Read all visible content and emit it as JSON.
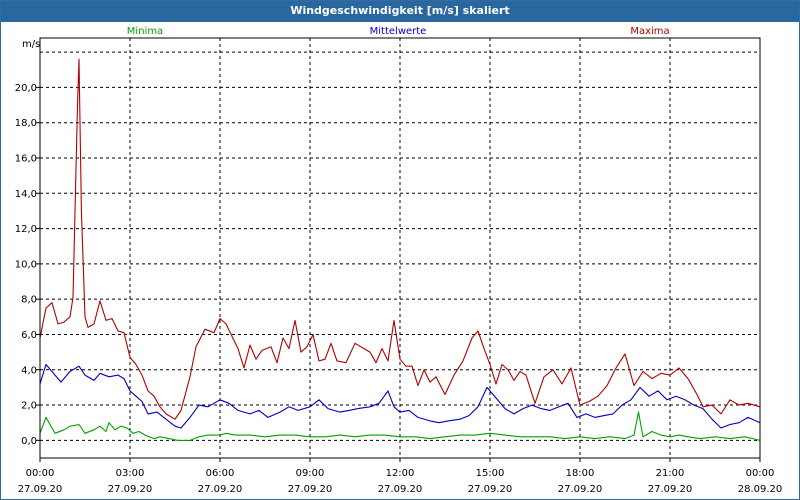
{
  "window": {
    "title": "Windgeschwindigkeit [m/s] skaliert"
  },
  "colors": {
    "minima": "#00a000",
    "mittelwerte": "#0000c0",
    "maxima": "#b00000",
    "titlebar": "#2a679f"
  },
  "chart_data": {
    "type": "line",
    "title": "Windgeschwindigkeit [m/s] skaliert",
    "ylabel": "m/s",
    "xlabel": "",
    "ylim": [
      -1.0,
      22.8
    ],
    "xlim_hours": [
      0,
      24
    ],
    "yticks": [
      0,
      2,
      4,
      6,
      8,
      10,
      12,
      14,
      16,
      18,
      20
    ],
    "ytick_labels": [
      "0,0",
      "2,0",
      "4,0",
      "6,0",
      "8,0",
      "10,0",
      "12,0",
      "14,0",
      "16,0",
      "18,0",
      "20,0"
    ],
    "xticks": [
      {
        "hour": 0,
        "time": "00:00",
        "date": "27.09.20"
      },
      {
        "hour": 3,
        "time": "03:00",
        "date": "27.09.20"
      },
      {
        "hour": 6,
        "time": "06:00",
        "date": "27.09.20"
      },
      {
        "hour": 9,
        "time": "09:00",
        "date": "27.09.20"
      },
      {
        "hour": 12,
        "time": "12:00",
        "date": "27.09.20"
      },
      {
        "hour": 15,
        "time": "15:00",
        "date": "27.09.20"
      },
      {
        "hour": 18,
        "time": "18:00",
        "date": "27.09.20"
      },
      {
        "hour": 21,
        "time": "21:00",
        "date": "27.09.20"
      },
      {
        "hour": 24,
        "time": "00:00",
        "date": "28.09.20"
      }
    ],
    "grid": true,
    "series": [
      {
        "name": "Minima",
        "points": [
          [
            0,
            0.4
          ],
          [
            0.2,
            1.3
          ],
          [
            0.5,
            0.4
          ],
          [
            0.8,
            0.6
          ],
          [
            1,
            0.8
          ],
          [
            1.3,
            0.9
          ],
          [
            1.5,
            0.4
          ],
          [
            1.8,
            0.6
          ],
          [
            2,
            0.8
          ],
          [
            2.2,
            0.5
          ],
          [
            2.3,
            1.0
          ],
          [
            2.5,
            0.6
          ],
          [
            2.7,
            0.8
          ],
          [
            2.9,
            0.7
          ],
          [
            3.1,
            0.4
          ],
          [
            3.3,
            0.5
          ],
          [
            3.5,
            0.3
          ],
          [
            3.8,
            0.1
          ],
          [
            4,
            0.2
          ],
          [
            4.3,
            0.1
          ],
          [
            4.6,
            0.0
          ],
          [
            5,
            0.0
          ],
          [
            5.3,
            0.2
          ],
          [
            5.6,
            0.3
          ],
          [
            6,
            0.3
          ],
          [
            6.2,
            0.4
          ],
          [
            6.5,
            0.3
          ],
          [
            7,
            0.3
          ],
          [
            7.5,
            0.2
          ],
          [
            8,
            0.3
          ],
          [
            8.5,
            0.3
          ],
          [
            9,
            0.2
          ],
          [
            9.5,
            0.2
          ],
          [
            10,
            0.3
          ],
          [
            10.5,
            0.2
          ],
          [
            11,
            0.3
          ],
          [
            11.5,
            0.3
          ],
          [
            12,
            0.2
          ],
          [
            12.5,
            0.2
          ],
          [
            13,
            0.1
          ],
          [
            13.5,
            0.2
          ],
          [
            14,
            0.3
          ],
          [
            14.5,
            0.3
          ],
          [
            15,
            0.4
          ],
          [
            15.5,
            0.3
          ],
          [
            16,
            0.2
          ],
          [
            16.5,
            0.2
          ],
          [
            17,
            0.2
          ],
          [
            17.5,
            0.1
          ],
          [
            18,
            0.2
          ],
          [
            18.5,
            0.1
          ],
          [
            19,
            0.2
          ],
          [
            19.5,
            0.1
          ],
          [
            19.8,
            0.3
          ],
          [
            19.95,
            1.6
          ],
          [
            20.1,
            0.2
          ],
          [
            20.4,
            0.5
          ],
          [
            20.7,
            0.3
          ],
          [
            21,
            0.2
          ],
          [
            21.3,
            0.3
          ],
          [
            21.6,
            0.2
          ],
          [
            22,
            0.1
          ],
          [
            22.5,
            0.2
          ],
          [
            23,
            0.1
          ],
          [
            23.5,
            0.2
          ],
          [
            24,
            0.0
          ]
        ]
      },
      {
        "name": "Mittelwerte",
        "points": [
          [
            0,
            3.2
          ],
          [
            0.2,
            4.3
          ],
          [
            0.5,
            3.7
          ],
          [
            0.7,
            3.3
          ],
          [
            1,
            3.9
          ],
          [
            1.3,
            4.2
          ],
          [
            1.5,
            3.7
          ],
          [
            1.8,
            3.4
          ],
          [
            2,
            3.8
          ],
          [
            2.3,
            3.6
          ],
          [
            2.6,
            3.7
          ],
          [
            2.8,
            3.5
          ],
          [
            3,
            2.8
          ],
          [
            3.2,
            2.5
          ],
          [
            3.4,
            2.2
          ],
          [
            3.6,
            1.5
          ],
          [
            3.9,
            1.6
          ],
          [
            4.2,
            1.2
          ],
          [
            4.5,
            0.8
          ],
          [
            4.7,
            0.7
          ],
          [
            5,
            1.3
          ],
          [
            5.3,
            2.0
          ],
          [
            5.6,
            1.9
          ],
          [
            6,
            2.3
          ],
          [
            6.3,
            2.1
          ],
          [
            6.6,
            1.7
          ],
          [
            7,
            1.5
          ],
          [
            7.3,
            1.7
          ],
          [
            7.6,
            1.3
          ],
          [
            8,
            1.6
          ],
          [
            8.3,
            1.9
          ],
          [
            8.6,
            1.7
          ],
          [
            9,
            1.9
          ],
          [
            9.3,
            2.3
          ],
          [
            9.6,
            1.8
          ],
          [
            10,
            1.6
          ],
          [
            10.3,
            1.7
          ],
          [
            10.6,
            1.8
          ],
          [
            11,
            1.9
          ],
          [
            11.3,
            2.1
          ],
          [
            11.6,
            2.8
          ],
          [
            11.8,
            1.9
          ],
          [
            12,
            1.6
          ],
          [
            12.3,
            1.7
          ],
          [
            12.6,
            1.3
          ],
          [
            13,
            1.1
          ],
          [
            13.3,
            1.0
          ],
          [
            13.6,
            1.1
          ],
          [
            14,
            1.2
          ],
          [
            14.3,
            1.4
          ],
          [
            14.6,
            1.9
          ],
          [
            14.9,
            3.0
          ],
          [
            15.2,
            2.4
          ],
          [
            15.5,
            1.8
          ],
          [
            15.8,
            1.5
          ],
          [
            16.1,
            1.8
          ],
          [
            16.4,
            2.0
          ],
          [
            16.7,
            1.8
          ],
          [
            17,
            1.7
          ],
          [
            17.3,
            1.9
          ],
          [
            17.6,
            2.1
          ],
          [
            17.9,
            1.3
          ],
          [
            18.2,
            1.5
          ],
          [
            18.5,
            1.3
          ],
          [
            18.8,
            1.4
          ],
          [
            19.1,
            1.5
          ],
          [
            19.4,
            2.0
          ],
          [
            19.7,
            2.3
          ],
          [
            20,
            3.0
          ],
          [
            20.3,
            2.5
          ],
          [
            20.6,
            2.8
          ],
          [
            20.9,
            2.3
          ],
          [
            21.2,
            2.5
          ],
          [
            21.5,
            2.3
          ],
          [
            21.8,
            2.0
          ],
          [
            22.1,
            1.8
          ],
          [
            22.4,
            1.2
          ],
          [
            22.7,
            0.7
          ],
          [
            23,
            0.9
          ],
          [
            23.3,
            1.0
          ],
          [
            23.6,
            1.3
          ],
          [
            24,
            1.0
          ]
        ]
      },
      {
        "name": "Maxima",
        "points": [
          [
            0,
            5.8
          ],
          [
            0.2,
            7.5
          ],
          [
            0.4,
            7.8
          ],
          [
            0.6,
            6.6
          ],
          [
            0.8,
            6.7
          ],
          [
            1,
            7.0
          ],
          [
            1.1,
            8.1
          ],
          [
            1.25,
            19.0
          ],
          [
            1.3,
            21.6
          ],
          [
            1.38,
            13.0
          ],
          [
            1.5,
            7.0
          ],
          [
            1.6,
            6.4
          ],
          [
            1.8,
            6.6
          ],
          [
            2,
            7.9
          ],
          [
            2.2,
            6.8
          ],
          [
            2.4,
            6.9
          ],
          [
            2.6,
            6.2
          ],
          [
            2.8,
            6.1
          ],
          [
            3,
            4.7
          ],
          [
            3.2,
            4.3
          ],
          [
            3.4,
            3.7
          ],
          [
            3.6,
            2.8
          ],
          [
            3.8,
            2.5
          ],
          [
            4,
            1.9
          ],
          [
            4.2,
            1.5
          ],
          [
            4.5,
            1.2
          ],
          [
            4.7,
            1.7
          ],
          [
            5,
            3.6
          ],
          [
            5.2,
            5.3
          ],
          [
            5.5,
            6.3
          ],
          [
            5.8,
            6.1
          ],
          [
            6,
            6.9
          ],
          [
            6.2,
            6.6
          ],
          [
            6.4,
            5.9
          ],
          [
            6.6,
            5.2
          ],
          [
            6.8,
            4.1
          ],
          [
            7,
            5.4
          ],
          [
            7.2,
            4.6
          ],
          [
            7.4,
            5.1
          ],
          [
            7.7,
            5.3
          ],
          [
            7.9,
            4.4
          ],
          [
            8.1,
            5.8
          ],
          [
            8.3,
            5.2
          ],
          [
            8.5,
            6.8
          ],
          [
            8.7,
            5.0
          ],
          [
            8.9,
            5.3
          ],
          [
            9.1,
            6.0
          ],
          [
            9.3,
            4.5
          ],
          [
            9.5,
            4.6
          ],
          [
            9.7,
            5.5
          ],
          [
            9.9,
            4.5
          ],
          [
            10.2,
            4.4
          ],
          [
            10.5,
            5.5
          ],
          [
            10.8,
            5.2
          ],
          [
            11,
            5.0
          ],
          [
            11.2,
            4.4
          ],
          [
            11.4,
            5.2
          ],
          [
            11.6,
            4.5
          ],
          [
            11.8,
            6.8
          ],
          [
            12,
            4.6
          ],
          [
            12.2,
            4.2
          ],
          [
            12.4,
            4.2
          ],
          [
            12.6,
            3.1
          ],
          [
            12.8,
            4.0
          ],
          [
            13,
            3.3
          ],
          [
            13.2,
            3.6
          ],
          [
            13.5,
            2.6
          ],
          [
            13.8,
            3.7
          ],
          [
            14.1,
            4.5
          ],
          [
            14.4,
            5.8
          ],
          [
            14.6,
            6.2
          ],
          [
            14.8,
            5.2
          ],
          [
            15,
            4.3
          ],
          [
            15.2,
            3.2
          ],
          [
            15.4,
            4.3
          ],
          [
            15.6,
            4.0
          ],
          [
            15.8,
            3.4
          ],
          [
            16,
            3.9
          ],
          [
            16.2,
            3.7
          ],
          [
            16.5,
            2.1
          ],
          [
            16.8,
            3.6
          ],
          [
            17.1,
            4.0
          ],
          [
            17.4,
            3.2
          ],
          [
            17.7,
            4.1
          ],
          [
            18,
            2.0
          ],
          [
            18.3,
            2.2
          ],
          [
            18.6,
            2.5
          ],
          [
            18.9,
            3.1
          ],
          [
            19.2,
            4.1
          ],
          [
            19.5,
            4.9
          ],
          [
            19.8,
            3.1
          ],
          [
            20.1,
            3.9
          ],
          [
            20.4,
            3.5
          ],
          [
            20.7,
            3.8
          ],
          [
            21,
            3.7
          ],
          [
            21.3,
            4.1
          ],
          [
            21.6,
            3.5
          ],
          [
            21.9,
            2.6
          ],
          [
            22.1,
            1.9
          ],
          [
            22.4,
            2.0
          ],
          [
            22.7,
            1.5
          ],
          [
            23,
            2.3
          ],
          [
            23.3,
            2.0
          ],
          [
            23.6,
            2.1
          ],
          [
            24,
            1.9
          ]
        ]
      }
    ]
  }
}
